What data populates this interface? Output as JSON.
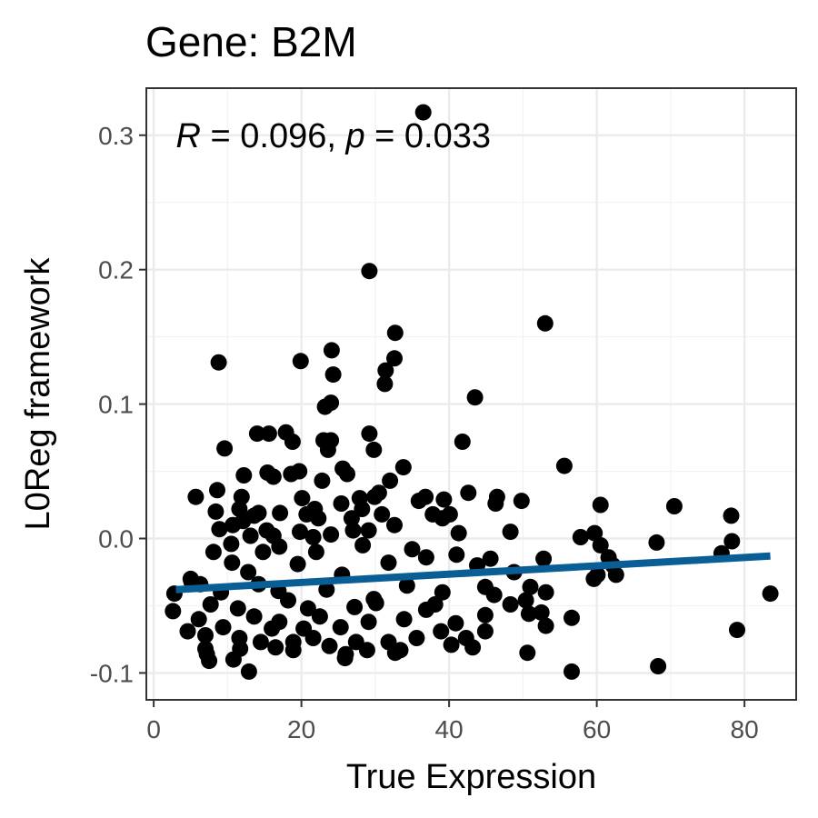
{
  "chart_data": {
    "type": "scatter",
    "title": "Gene: B2M",
    "xlabel": "True Expression",
    "ylabel": "L0Reg framework",
    "xlim": [
      -1,
      87
    ],
    "ylim": [
      -0.12,
      0.335
    ],
    "x_ticks": [
      0,
      20,
      40,
      60,
      80
    ],
    "x_tick_labels": [
      "0",
      "20",
      "40",
      "60",
      "80"
    ],
    "y_ticks": [
      -0.1,
      0.0,
      0.1,
      0.2,
      0.3
    ],
    "y_tick_labels": [
      "-0.1",
      "0.0",
      "0.1",
      "0.2",
      "0.3"
    ],
    "grid": true,
    "annotation": {
      "r_symbol": "R",
      "r_text": " = 0.096, ",
      "p_symbol": "p",
      "p_text": " = 0.033",
      "x": 3,
      "y": 0.291
    },
    "trend_line": {
      "x": [
        3,
        83.5
      ],
      "y": [
        -0.038,
        -0.013
      ],
      "color": "#0a5e96"
    },
    "point_color": "#000000",
    "points": [
      [
        36.5,
        0.317
      ],
      [
        29.2,
        0.199
      ],
      [
        53.0,
        0.16
      ],
      [
        32.7,
        0.153
      ],
      [
        24.1,
        0.14
      ],
      [
        32.6,
        0.134
      ],
      [
        8.8,
        0.131
      ],
      [
        19.9,
        0.132
      ],
      [
        31.4,
        0.125
      ],
      [
        24.3,
        0.122
      ],
      [
        31.3,
        0.115
      ],
      [
        43.5,
        0.105
      ],
      [
        24.0,
        0.101
      ],
      [
        23.2,
        0.098
      ],
      [
        29.2,
        0.078
      ],
      [
        14.0,
        0.078
      ],
      [
        15.6,
        0.078
      ],
      [
        17.9,
        0.079
      ],
      [
        23.0,
        0.073
      ],
      [
        24.0,
        0.073
      ],
      [
        18.8,
        0.072
      ],
      [
        41.8,
        0.072
      ],
      [
        23.6,
        0.066
      ],
      [
        29.8,
        0.066
      ],
      [
        9.6,
        0.067
      ],
      [
        55.6,
        0.054
      ],
      [
        33.8,
        0.053
      ],
      [
        25.6,
        0.052
      ],
      [
        19.7,
        0.05
      ],
      [
        15.4,
        0.049
      ],
      [
        18.6,
        0.048
      ],
      [
        12.2,
        0.047
      ],
      [
        26.2,
        0.048
      ],
      [
        16.2,
        0.046
      ],
      [
        22.8,
        0.043
      ],
      [
        32.0,
        0.043
      ],
      [
        42.6,
        0.034
      ],
      [
        30.5,
        0.034
      ],
      [
        29.9,
        0.031
      ],
      [
        36.8,
        0.031
      ],
      [
        46.5,
        0.031
      ],
      [
        8.6,
        0.036
      ],
      [
        5.7,
        0.031
      ],
      [
        11.9,
        0.031
      ],
      [
        20.1,
        0.03
      ],
      [
        27.9,
        0.03
      ],
      [
        35.9,
        0.028
      ],
      [
        39.3,
        0.029
      ],
      [
        49.8,
        0.028
      ],
      [
        60.5,
        0.025
      ],
      [
        70.5,
        0.024
      ],
      [
        46.3,
        0.026
      ],
      [
        25.4,
        0.026
      ],
      [
        21.8,
        0.022
      ],
      [
        28.2,
        0.022
      ],
      [
        11.6,
        0.022
      ],
      [
        14.2,
        0.019
      ],
      [
        8.4,
        0.02
      ],
      [
        17.1,
        0.019
      ],
      [
        20.7,
        0.018
      ],
      [
        30.9,
        0.018
      ],
      [
        37.8,
        0.018
      ],
      [
        40.1,
        0.018
      ],
      [
        13.6,
        0.017
      ],
      [
        26.8,
        0.015
      ],
      [
        39.1,
        0.015
      ],
      [
        22.3,
        0.015
      ],
      [
        78.2,
        0.017
      ],
      [
        12.1,
        0.013
      ],
      [
        32.6,
        0.01
      ],
      [
        10.7,
        0.01
      ],
      [
        8.9,
        0.007
      ],
      [
        15.3,
        0.006
      ],
      [
        19.8,
        0.005
      ],
      [
        27.0,
        0.006
      ],
      [
        29.1,
        0.006
      ],
      [
        48.3,
        0.005
      ],
      [
        59.7,
        0.004
      ],
      [
        24.0,
        0.003
      ],
      [
        41.3,
        0.004
      ],
      [
        13.1,
        0.002
      ],
      [
        16.2,
        0.002
      ],
      [
        21.6,
        0.001
      ],
      [
        57.8,
        0.001
      ],
      [
        68.1,
        -0.003
      ],
      [
        78.3,
        -0.002
      ],
      [
        60.5,
        -0.005
      ],
      [
        10.5,
        -0.004
      ],
      [
        17.0,
        -0.006
      ],
      [
        28.3,
        -0.005
      ],
      [
        35.0,
        -0.008
      ],
      [
        8.1,
        -0.01
      ],
      [
        14.8,
        -0.01
      ],
      [
        22.0,
        -0.01
      ],
      [
        36.9,
        -0.014
      ],
      [
        41.0,
        -0.012
      ],
      [
        45.6,
        -0.015
      ],
      [
        52.8,
        -0.015
      ],
      [
        61.6,
        -0.014
      ],
      [
        76.9,
        -0.011
      ],
      [
        10.6,
        -0.018
      ],
      [
        19.5,
        -0.019
      ],
      [
        31.8,
        -0.018
      ],
      [
        43.8,
        -0.02
      ],
      [
        62.2,
        -0.02
      ],
      [
        48.8,
        -0.025
      ],
      [
        60.1,
        -0.027
      ],
      [
        62.6,
        -0.027
      ],
      [
        59.6,
        -0.03
      ],
      [
        12.8,
        -0.025
      ],
      [
        25.5,
        -0.027
      ],
      [
        44.9,
        -0.036
      ],
      [
        51.0,
        -0.036
      ],
      [
        5.0,
        -0.03
      ],
      [
        5.1,
        -0.032
      ],
      [
        6.3,
        -0.034
      ],
      [
        14.2,
        -0.034
      ],
      [
        34.3,
        -0.035
      ],
      [
        39.1,
        -0.04
      ],
      [
        9.1,
        -0.04
      ],
      [
        16.9,
        -0.039
      ],
      [
        23.4,
        -0.038
      ],
      [
        46.1,
        -0.042
      ],
      [
        53.1,
        -0.04
      ],
      [
        29.8,
        -0.045
      ],
      [
        2.8,
        -0.041
      ],
      [
        18.2,
        -0.046
      ],
      [
        30.1,
        -0.048
      ],
      [
        38.1,
        -0.049
      ],
      [
        48.3,
        -0.049
      ],
      [
        50.4,
        -0.046
      ],
      [
        7.7,
        -0.049
      ],
      [
        11.4,
        -0.052
      ],
      [
        20.9,
        -0.052
      ],
      [
        27.2,
        -0.051
      ],
      [
        36.9,
        -0.053
      ],
      [
        44.9,
        -0.057
      ],
      [
        52.5,
        -0.055
      ],
      [
        2.6,
        -0.054
      ],
      [
        13.6,
        -0.058
      ],
      [
        22.5,
        -0.058
      ],
      [
        33.9,
        -0.06
      ],
      [
        50.8,
        -0.056
      ],
      [
        56.6,
        -0.059
      ],
      [
        83.5,
        -0.041
      ],
      [
        6.1,
        -0.06
      ],
      [
        17.0,
        -0.062
      ],
      [
        29.1,
        -0.062
      ],
      [
        40.9,
        -0.063
      ],
      [
        4.6,
        -0.069
      ],
      [
        53.1,
        -0.065
      ],
      [
        9.4,
        -0.066
      ],
      [
        16.0,
        -0.067
      ],
      [
        20.3,
        -0.067
      ],
      [
        25.3,
        -0.066
      ],
      [
        38.9,
        -0.069
      ],
      [
        44.9,
        -0.069
      ],
      [
        79.0,
        -0.068
      ],
      [
        7.0,
        -0.072
      ],
      [
        11.6,
        -0.074
      ],
      [
        21.6,
        -0.074
      ],
      [
        35.6,
        -0.074
      ],
      [
        42.3,
        -0.074
      ],
      [
        14.5,
        -0.077
      ],
      [
        18.9,
        -0.077
      ],
      [
        27.4,
        -0.077
      ],
      [
        31.8,
        -0.077
      ],
      [
        40.3,
        -0.079
      ],
      [
        7.0,
        -0.082
      ],
      [
        11.7,
        -0.082
      ],
      [
        16.5,
        -0.081
      ],
      [
        23.8,
        -0.08
      ],
      [
        28.9,
        -0.083
      ],
      [
        33.4,
        -0.083
      ],
      [
        43.2,
        -0.081
      ],
      [
        7.2,
        -0.086
      ],
      [
        18.9,
        -0.083
      ],
      [
        26.0,
        -0.086
      ],
      [
        32.7,
        -0.085
      ],
      [
        50.6,
        -0.085
      ],
      [
        7.5,
        -0.091
      ],
      [
        10.8,
        -0.09
      ],
      [
        25.9,
        -0.089
      ],
      [
        12.9,
        -0.099
      ],
      [
        56.6,
        -0.099
      ],
      [
        68.3,
        -0.095
      ]
    ]
  }
}
